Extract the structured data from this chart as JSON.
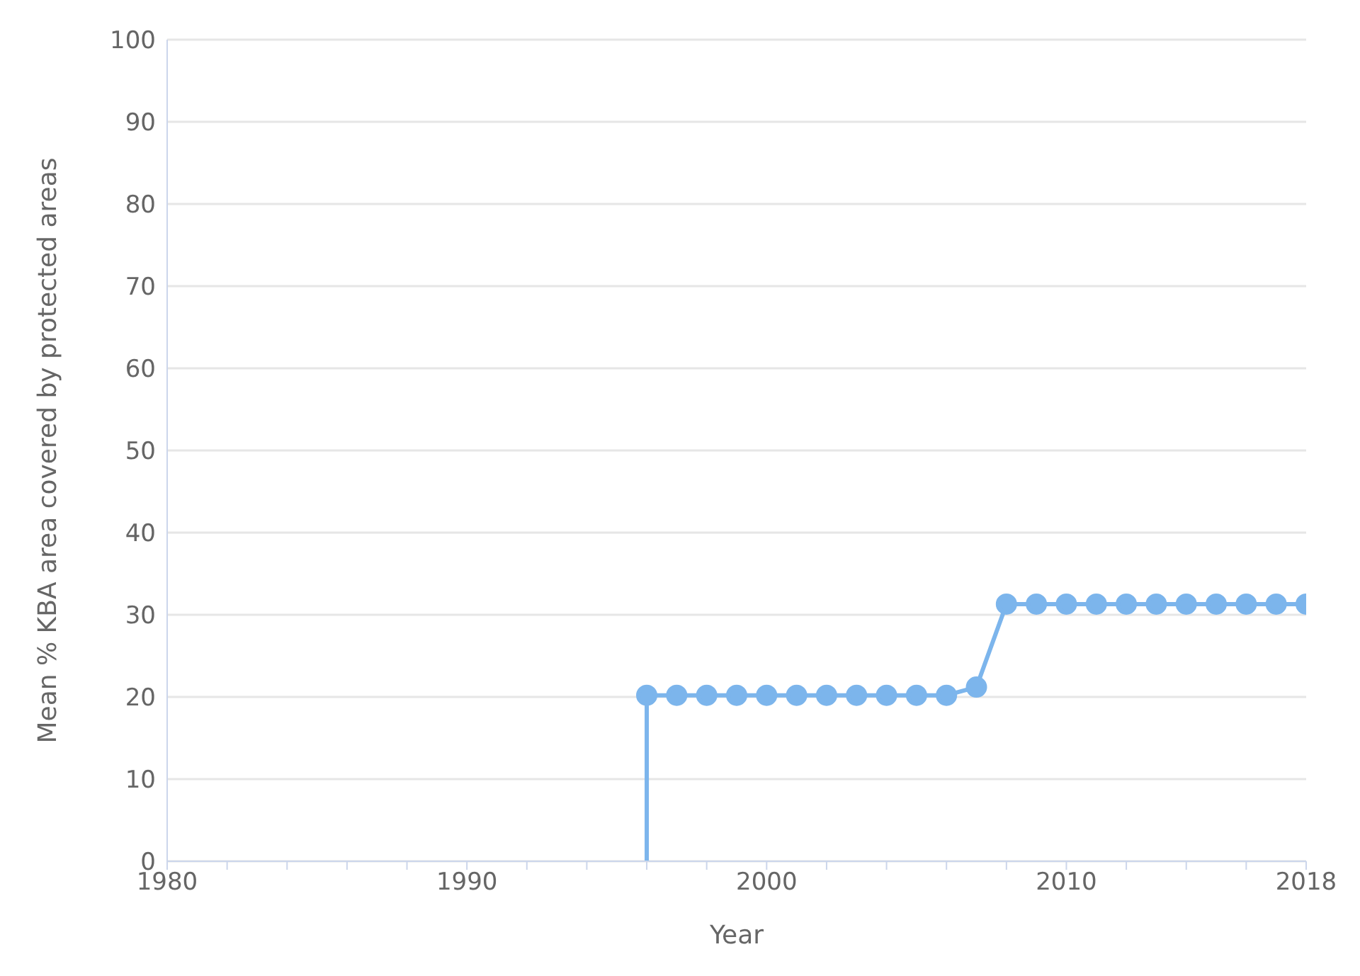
{
  "chart_data": {
    "type": "line",
    "xlabel": "Year",
    "ylabel": "Mean % KBA area covered by protected areas",
    "series": [
      {
        "color": "#7cb5ec",
        "x": [
          1996,
          1996
        ],
        "values": [
          0,
          20.2
        ]
      },
      {
        "color": "#7cb5ec",
        "marker": "circle",
        "x": [
          1996,
          1997,
          1998,
          1999,
          2000,
          2001,
          2002,
          2003,
          2004,
          2005,
          2006,
          2007,
          2008,
          2009,
          2010,
          2011,
          2012,
          2013,
          2014,
          2015,
          2016,
          2017,
          2018
        ],
        "values": [
          20.2,
          20.2,
          20.2,
          20.2,
          20.2,
          20.2,
          20.2,
          20.2,
          20.2,
          20.2,
          20.2,
          21.2,
          31.3,
          31.3,
          31.3,
          31.3,
          31.3,
          31.3,
          31.3,
          31.3,
          31.3,
          31.3,
          31.3
        ]
      }
    ],
    "xlim": [
      1980,
      2018
    ],
    "xticks": [
      1980,
      {
        "value": 1982,
        "label": null
      },
      {
        "value": 1984,
        "label": null
      },
      {
        "value": 1986,
        "label": null
      },
      {
        "value": 1988,
        "label": null
      },
      1990,
      {
        "value": 1992,
        "label": null
      },
      {
        "value": 1994,
        "label": null
      },
      {
        "value": 1996,
        "label": null
      },
      {
        "value": 1998,
        "label": null
      },
      2000,
      {
        "value": 2002,
        "label": null
      },
      {
        "value": 2004,
        "label": null
      },
      {
        "value": 2006,
        "label": null
      },
      {
        "value": 2008,
        "label": null
      },
      2010,
      {
        "value": 2012,
        "label": null
      },
      {
        "value": 2014,
        "label": null
      },
      {
        "value": 2016,
        "label": null
      },
      2018
    ],
    "ylim": [
      0,
      100
    ],
    "yticks": [
      0,
      10,
      20,
      30,
      40,
      50,
      60,
      70,
      80,
      90,
      100
    ],
    "grid": "y",
    "legend": false,
    "line_style": "solid"
  }
}
